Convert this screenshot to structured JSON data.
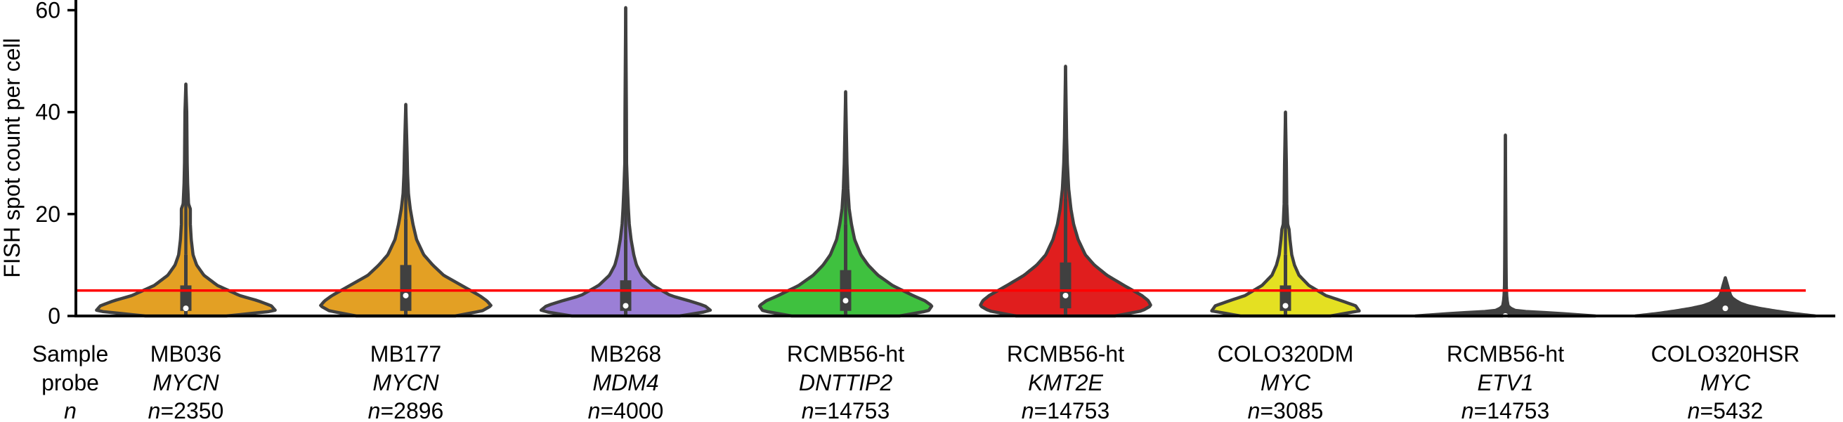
{
  "chart_data": {
    "type": "violin",
    "ylabel": "FISH spot count per cell",
    "ylim": [
      0,
      62
    ],
    "yticks": [
      0,
      20,
      40,
      60
    ],
    "threshold": 5,
    "threshold_color": "#ff0000",
    "row_labels": [
      "Sample",
      "probe",
      "n"
    ],
    "violin_edge_color": "#404040",
    "categories": [
      {
        "sample": "MB036",
        "probe": "MYCN",
        "n_prefix": "n",
        "n_value": "=2350",
        "color": "#e3a024",
        "stats": {
          "max": 45.5,
          "q1": 1,
          "median": 1.5,
          "q3": 6,
          "whisker_low": 0,
          "whisker_high": 12
        },
        "profile": [
          [
            0,
            0.45
          ],
          [
            1,
            1.0
          ],
          [
            2,
            0.95
          ],
          [
            3,
            0.8
          ],
          [
            4,
            0.6
          ],
          [
            6,
            0.35
          ],
          [
            8,
            0.2
          ],
          [
            10,
            0.12
          ],
          [
            12,
            0.08
          ],
          [
            15,
            0.06
          ],
          [
            18,
            0.05
          ],
          [
            21,
            0.05
          ],
          [
            22,
            0.03
          ],
          [
            26,
            0.02
          ],
          [
            30,
            0.015
          ],
          [
            40,
            0.01
          ],
          [
            45.5,
            0.0
          ]
        ]
      },
      {
        "sample": "MB177",
        "probe": "MYCN",
        "n_prefix": "n",
        "n_value": "=2896",
        "color": "#e3a024",
        "stats": {
          "max": 41.5,
          "q1": 1,
          "median": 4,
          "q3": 10,
          "whisker_low": 0,
          "whisker_high": 19
        },
        "profile": [
          [
            0,
            0.55
          ],
          [
            1,
            0.85
          ],
          [
            2,
            0.95
          ],
          [
            3,
            0.9
          ],
          [
            4,
            0.82
          ],
          [
            6,
            0.62
          ],
          [
            8,
            0.42
          ],
          [
            10,
            0.3
          ],
          [
            12,
            0.2
          ],
          [
            15,
            0.12
          ],
          [
            18,
            0.08
          ],
          [
            21,
            0.05
          ],
          [
            24,
            0.03
          ],
          [
            28,
            0.02
          ],
          [
            32,
            0.015
          ],
          [
            41.5,
            0.0
          ]
        ]
      },
      {
        "sample": "MB268",
        "probe": "MDM4",
        "n_prefix": "n",
        "n_value": "=4000",
        "color": "#9b7fd6",
        "stats": {
          "max": 60.5,
          "q1": 1,
          "median": 2,
          "q3": 7,
          "whisker_low": 0,
          "whisker_high": 15
        },
        "profile": [
          [
            0,
            0.6
          ],
          [
            1,
            0.95
          ],
          [
            2,
            0.88
          ],
          [
            3,
            0.7
          ],
          [
            4,
            0.5
          ],
          [
            6,
            0.3
          ],
          [
            8,
            0.18
          ],
          [
            10,
            0.12
          ],
          [
            12,
            0.09
          ],
          [
            15,
            0.06
          ],
          [
            18,
            0.04
          ],
          [
            21,
            0.03
          ],
          [
            25,
            0.02
          ],
          [
            30,
            0.01
          ],
          [
            40,
            0.008
          ],
          [
            60.5,
            0.0
          ]
        ]
      },
      {
        "sample": "RCMB56-ht",
        "probe": "DNTTIP2",
        "n_prefix": "n",
        "n_value": "=14753",
        "color": "#3fc13f",
        "stats": {
          "max": 44,
          "q1": 1,
          "median": 3,
          "q3": 9,
          "whisker_low": 0,
          "whisker_high": 18
        },
        "profile": [
          [
            0,
            0.6
          ],
          [
            1,
            0.92
          ],
          [
            2,
            0.96
          ],
          [
            3,
            0.88
          ],
          [
            4,
            0.75
          ],
          [
            6,
            0.52
          ],
          [
            8,
            0.36
          ],
          [
            10,
            0.25
          ],
          [
            12,
            0.17
          ],
          [
            15,
            0.1
          ],
          [
            18,
            0.065
          ],
          [
            21,
            0.04
          ],
          [
            25,
            0.025
          ],
          [
            30,
            0.015
          ],
          [
            44,
            0.0
          ]
        ]
      },
      {
        "sample": "RCMB56-ht",
        "probe": "KMT2E",
        "n_prefix": "n",
        "n_value": "=14753",
        "color": "#e01e1e",
        "stats": {
          "max": 49,
          "q1": 1.5,
          "median": 4,
          "q3": 10.5,
          "whisker_low": 0,
          "whisker_high": 23
        },
        "profile": [
          [
            0,
            0.55
          ],
          [
            1,
            0.85
          ],
          [
            2,
            0.95
          ],
          [
            3,
            0.92
          ],
          [
            4,
            0.85
          ],
          [
            6,
            0.65
          ],
          [
            8,
            0.46
          ],
          [
            10,
            0.32
          ],
          [
            12,
            0.22
          ],
          [
            15,
            0.14
          ],
          [
            18,
            0.09
          ],
          [
            21,
            0.06
          ],
          [
            25,
            0.035
          ],
          [
            30,
            0.02
          ],
          [
            35,
            0.012
          ],
          [
            49,
            0.0
          ]
        ]
      },
      {
        "sample": "COLO320DM",
        "probe": "MYC",
        "n_prefix": "n",
        "n_value": "=3085",
        "color": "#e4e022",
        "stats": {
          "max": 40,
          "q1": 1,
          "median": 2,
          "q3": 6,
          "whisker_low": 0,
          "whisker_high": 12
        },
        "profile": [
          [
            0,
            0.5
          ],
          [
            1,
            0.82
          ],
          [
            2,
            0.78
          ],
          [
            3,
            0.62
          ],
          [
            4,
            0.45
          ],
          [
            6,
            0.26
          ],
          [
            8,
            0.15
          ],
          [
            10,
            0.1
          ],
          [
            12,
            0.07
          ],
          [
            15,
            0.05
          ],
          [
            17,
            0.04
          ],
          [
            18,
            0.025
          ],
          [
            22,
            0.015
          ],
          [
            30,
            0.01
          ],
          [
            40,
            0.0
          ]
        ]
      },
      {
        "sample": "RCMB56-ht",
        "probe": "ETV1",
        "n_prefix": "n",
        "n_value": "=14753",
        "color": "#404040",
        "stats": {
          "max": 35.5,
          "q1": 0,
          "median": 0,
          "q3": 1,
          "whisker_low": 0,
          "whisker_high": 2
        },
        "profile": [
          [
            0,
            1.0
          ],
          [
            0.5,
            0.6
          ],
          [
            1,
            0.12
          ],
          [
            1.5,
            0.06
          ],
          [
            2,
            0.03
          ],
          [
            3,
            0.02
          ],
          [
            4,
            0.015
          ],
          [
            6,
            0.01
          ],
          [
            10,
            0.008
          ],
          [
            35.5,
            0.0
          ]
        ]
      },
      {
        "sample": "COLO320HSR",
        "probe": "MYC",
        "n_prefix": "n",
        "n_value": "=5432",
        "color": "#404040",
        "stats": {
          "max": 7.5,
          "q1": 0.5,
          "median": 1.5,
          "q3": 2.5,
          "whisker_low": 0,
          "whisker_high": 4
        },
        "profile": [
          [
            0,
            1.0
          ],
          [
            0.5,
            0.75
          ],
          [
            1,
            0.55
          ],
          [
            1.5,
            0.38
          ],
          [
            2,
            0.25
          ],
          [
            2.5,
            0.17
          ],
          [
            3,
            0.12
          ],
          [
            3.5,
            0.08
          ],
          [
            4,
            0.06
          ],
          [
            5,
            0.04
          ],
          [
            6,
            0.025
          ],
          [
            7.5,
            0.0
          ]
        ]
      }
    ]
  }
}
